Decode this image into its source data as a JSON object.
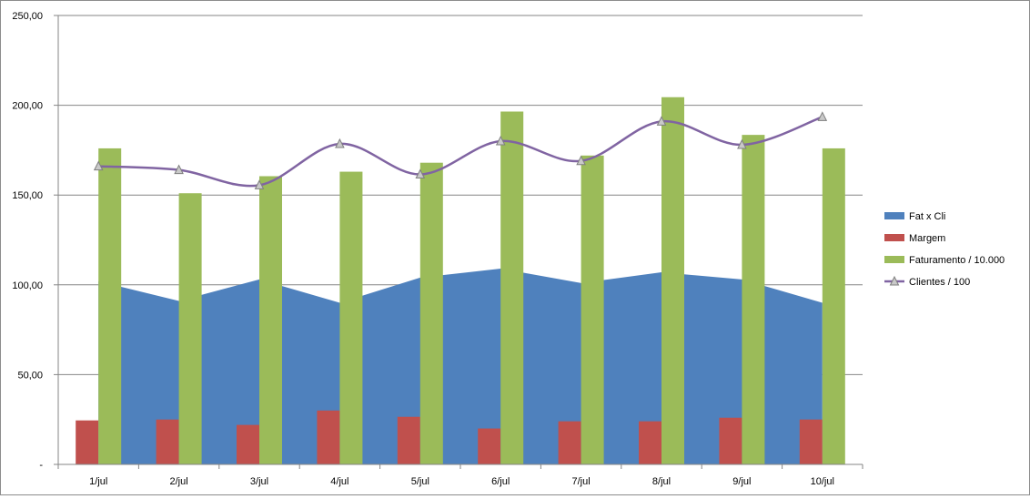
{
  "chart_data": {
    "type": "bar",
    "categories": [
      "1/jul",
      "2/jul",
      "3/jul",
      "4/jul",
      "5/jul",
      "6/jul",
      "7/jul",
      "8/jul",
      "9/jul",
      "10/jul"
    ],
    "y_ticks": [
      "-",
      "50,00",
      "100,00",
      "150,00",
      "200,00",
      "250,00"
    ],
    "ylim": [
      0,
      250
    ],
    "grid": true,
    "legend_position": "right",
    "series": [
      {
        "name": "Fat x Cli",
        "type": "area",
        "color": "#4f81bd",
        "values": [
          102,
          91,
          103,
          90,
          104,
          109,
          101,
          107,
          103,
          90
        ]
      },
      {
        "name": "Margem",
        "type": "bar",
        "color": "#c0504d",
        "values": [
          24.5,
          25,
          22,
          30,
          26.5,
          20,
          24,
          24,
          26,
          25
        ]
      },
      {
        "name": "Faturamento / 10.000",
        "type": "bar",
        "color": "#9bbb59",
        "values": [
          176,
          151,
          160.5,
          163,
          168,
          196.5,
          172,
          204.5,
          183.5,
          176
        ]
      },
      {
        "name": "Clientes / 100",
        "type": "line",
        "color": "#8064a2",
        "marker": "triangle",
        "values": [
          166,
          164,
          155.5,
          178.5,
          161.5,
          180,
          169,
          191,
          178,
          193.5
        ]
      }
    ]
  }
}
